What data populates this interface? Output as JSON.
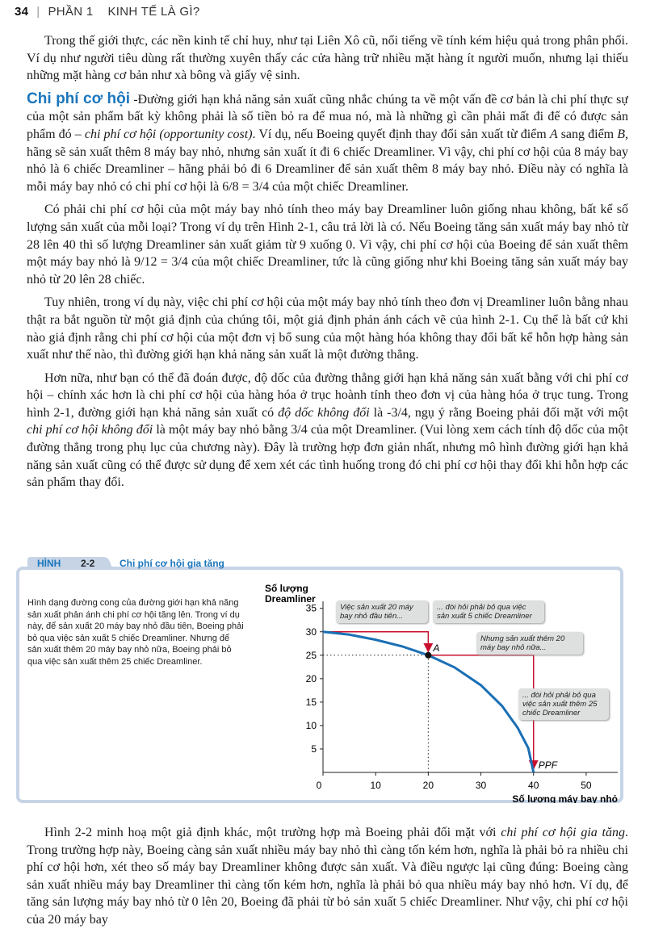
{
  "header": {
    "page_number": "34",
    "part": "PHẦN 1",
    "section": "KINH TẾ LÀ GÌ?"
  },
  "body": {
    "paragraphs": [
      {
        "runs": [
          {
            "text": "Trong thế giới thực, các nền kinh tế chỉ huy, như tại Liên Xô cũ, nổi tiếng về tính kém hiệu quả trong phân phối. Ví dụ như người tiêu dùng rất thường xuyên thấy các cửa hàng trữ nhiều mặt hàng ít người muốn, nhưng lại thiếu những mặt hàng cơ bản như xà bông và giấy vệ sinh."
          }
        ]
      },
      {
        "runs": [
          {
            "text": "Chi phí cơ hội",
            "heading": true
          },
          {
            "text": " -Đường giới hạn khả năng sản xuất cũng nhắc chúng ta về một vấn đề cơ bản là chi phí thực sự của một sản phẩm bất kỳ không phải là số tiền bỏ ra để mua nó, mà là những gì cần phải mất đi để có được sản phẩm đó – "
          },
          {
            "text": "chi phí cơ hội (opportunity cost)",
            "italic": true
          },
          {
            "text": ". Ví dụ, nếu Boeing quyết định thay đổi sản xuất từ điểm "
          },
          {
            "text": "A",
            "italic": true
          },
          {
            "text": " sang điểm "
          },
          {
            "text": "B",
            "italic": true
          },
          {
            "text": ", hãng sẽ sản xuất thêm 8 máy bay nhỏ, nhưng sản xuất ít đi 6 chiếc Dreamliner. Vì vậy, chi phí cơ hội của 8 máy bay nhỏ là 6 chiếc Dreamliner – hãng phải bỏ đi 6 Dreamliner để sản xuất thêm 8 máy bay nhỏ. Điều này có nghĩa là mỗi máy bay nhỏ có chi phí cơ hội là 6/8 = 3/4 của một chiếc Dreamliner."
          }
        ]
      },
      {
        "runs": [
          {
            "text": "Có phải chi phí cơ hội của một máy bay nhỏ tính theo máy bay Dreamliner luôn giống nhau không, bất kể số lượng sản xuất của mỗi loại? Trong ví dụ trên Hình 2-1, câu trả lời là có. Nếu Boeing tăng sản xuất máy bay nhỏ từ 28 lên 40 thì số lượng Dreamliner sản xuất giảm từ 9 xuống 0. Vì vậy, chi phí cơ hội của Boeing để sản xuất thêm một máy bay nhỏ là 9/12 = 3/4 của một chiếc Dreamliner, tức là cũng giống như khi Boeing tăng sản xuất máy bay nhỏ từ 20 lên 28 chiếc."
          }
        ]
      },
      {
        "runs": [
          {
            "text": "Tuy nhiên, trong ví dụ này, việc chi phí cơ hội của một máy bay nhỏ tính theo đơn vị Dreamliner luôn bằng nhau thật ra bắt nguồn từ một giả định của chúng tôi, một giả định phản ánh cách vẽ của hình 2-1. Cụ thể là bất cứ khi nào giả định rằng chi phí cơ hội của một đơn vị bổ sung của một hàng hóa không thay đổi bất kể hỗn hợp hàng sản xuất như thế nào, thì đường giới hạn khả năng sản xuất là một đường thẳng."
          }
        ]
      },
      {
        "runs": [
          {
            "text": "Hơn nữa, như bạn có thể đã đoán được, độ dốc của đường thẳng giới hạn khả năng sản xuất bằng với chi phí cơ hội – chính xác hơn là chi phí cơ hội của hàng hóa ở trục hoành tính theo đơn vị của hàng hóa ở trục tung. Trong hình 2-1, đường giới hạn khả năng sản xuất có "
          },
          {
            "text": "độ dốc không đổi",
            "italic": true
          },
          {
            "text": " là -3/4, ngụ ý rằng Boeing phải đối mặt với một "
          },
          {
            "text": "chi phí cơ hội không đổi",
            "italic": true
          },
          {
            "text": " là một máy bay nhỏ bằng 3/4 của một Dreamliner. (Vui lòng xem cách tính độ dốc của một đường thẳng trong phụ lục của chương này). Đây là trường hợp đơn giản nhất, nhưng mô hình đường giới hạn khả năng sản xuất cũng có thể được sử dụng để xem xét các tình huống trong đó chi phí cơ hội thay đổi khi hỗn hợp các sản phẩm thay đổi."
          }
        ]
      }
    ]
  },
  "figure": {
    "label": "HÌNH",
    "number": "2-2",
    "title": "Chi phí cơ hội gia tăng",
    "caption": "Hình dạng đường cong của đường giới hạn khả năng sản xuất phản ánh chi phí cơ hội tăng lên. Trong ví dụ này, để sản xuất 20 máy bay nhỏ đầu tiên, Boeing phải bỏ qua việc sản xuất 5 chiếc Dreamliner. Nhưng để sản xuất thêm 20 máy bay nhỏ nữa, Boeing phải bỏ qua việc sản xuất thêm 25 chiếc Dreamliner.",
    "chart": {
      "type": "line",
      "x_label": "Số lượng máy bay nhỏ",
      "y_label": "Số lượng Dreamliner",
      "xlim": [
        0,
        56
      ],
      "ylim": [
        0,
        36.5
      ],
      "xticks": [
        0,
        10,
        20,
        30,
        40,
        50
      ],
      "yticks": [
        5,
        10,
        15,
        20,
        25,
        30,
        35
      ],
      "series": [
        {
          "name": "PPF",
          "color": "#1a6fb5",
          "x": [
            0,
            5,
            10,
            15,
            20,
            25,
            30,
            34,
            37,
            39,
            40
          ],
          "values": [
            30,
            29.4,
            28.3,
            26.9,
            25,
            22.4,
            18.6,
            14.2,
            9.5,
            5.2,
            0
          ]
        }
      ],
      "point": {
        "label": "A",
        "x": 20,
        "y": 25
      },
      "annotations": [
        "Việc sản xuất 20 máy bay nhỏ đầu tiên...",
        "... đòi hỏi phải bỏ qua việc sản xuất 5 chiếc Dreamliner",
        "Nhưng sản xuất thêm 20 máy bay nhỏ nữa...",
        "... đòi hỏi phải bỏ qua việc sản xuất thêm 25 chiếc Dreamliner"
      ]
    }
  },
  "continuation": {
    "runs": [
      {
        "text": "Hình 2-2 minh hoạ một giả định khác, một trường hợp mà Boeing phải đối mặt với "
      },
      {
        "text": "chi phí cơ hội gia tăng",
        "italic": true
      },
      {
        "text": ". Trong trường hợp này, Boeing càng sản xuất nhiều máy bay nhỏ thì càng tốn kém hơn, nghĩa là phải bỏ ra nhiều chi phí cơ hội hơn, xét theo số máy bay Dreamliner không được sản xuất. Và điều ngược lại cũng đúng: Boeing càng sản xuất nhiều máy bay Dreamliner thì càng tốn kém hơn, nghĩa là phải bỏ qua nhiều máy bay nhỏ hơn. Ví dụ, để tăng sản lượng máy bay nhỏ từ 0 lên 20, Boeing đã phải từ bỏ sản xuất 5 chiếc Dreamliner. Như vậy, chi phí cơ hội của 20 máy bay"
      }
    ]
  }
}
